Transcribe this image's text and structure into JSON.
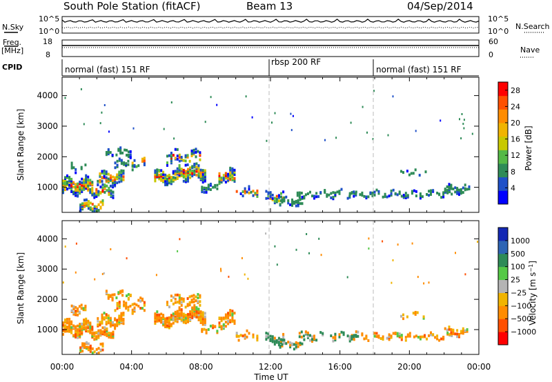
{
  "header": {
    "station": "South Pole Station (fitACF)",
    "beam": "Beam 13",
    "date": "04/Sep/2014"
  },
  "top_panels": {
    "nsky_label": "N.Sky",
    "nsearch_label": "N.Search",
    "freq_label_1": "Freq.",
    "freq_label_2": "[MHz]",
    "nave_label": "Nave",
    "cpid_label": "CPID",
    "noise_ticks_left": [
      "10^5",
      "10^0"
    ],
    "noise_ticks_right": [
      "10^5",
      "10^0"
    ],
    "freq_ticks": [
      "18",
      "8"
    ],
    "nave_ticks": [
      "60",
      "0"
    ],
    "cpid_segments": [
      {
        "label": "normal (fast) 151 RF",
        "start_h": 0
      },
      {
        "label": "rbsp 200 RF",
        "start_h": 12
      },
      {
        "label": "normal (fast) 151 RF",
        "start_h": 18
      }
    ]
  },
  "chart_data": [
    {
      "type": "heatmap",
      "title": "",
      "xlabel": "Time UT",
      "ylabel": "Slant Range [km]",
      "xlim": [
        0,
        24
      ],
      "ylim": [
        180,
        4600
      ],
      "x_ticks": [
        "00:00",
        "04:00",
        "08:00",
        "12:00",
        "16:00",
        "20:00",
        "00:00"
      ],
      "y_ticks": [
        1000,
        2000,
        3000,
        4000
      ],
      "mode_change_lines_h": [
        12,
        18
      ],
      "colorbar": {
        "label": "Power [dB]",
        "ticks": [
          4,
          8,
          12,
          16,
          20,
          24,
          28
        ],
        "range": [
          0,
          30
        ],
        "colors": [
          "#0000ff",
          "#1e50c8",
          "#2e8b57",
          "#55b946",
          "#c8c800",
          "#f0b400",
          "#ff8c00",
          "#ff5000",
          "#ff0000"
        ]
      }
    },
    {
      "type": "heatmap",
      "title": "",
      "xlabel": "Time UT",
      "ylabel": "Slant Range [km]",
      "xlim": [
        0,
        24
      ],
      "ylim": [
        180,
        4600
      ],
      "x_ticks": [
        "00:00",
        "04:00",
        "08:00",
        "12:00",
        "16:00",
        "20:00",
        "00:00"
      ],
      "y_ticks": [
        1000,
        2000,
        3000,
        4000
      ],
      "mode_change_lines_h": [
        12,
        18
      ],
      "colorbar": {
        "label": "Velocity [m s^-1]",
        "ticks": [
          "1000",
          "500",
          "100",
          "25",
          "−25",
          "−100",
          "−500",
          "−1000"
        ],
        "colors": [
          "#1428b4",
          "#2d64b4",
          "#2e8b57",
          "#55c846",
          "#b4b4b4",
          "#f0b400",
          "#ff8c00",
          "#ff5000",
          "#ff0000"
        ]
      }
    }
  ]
}
